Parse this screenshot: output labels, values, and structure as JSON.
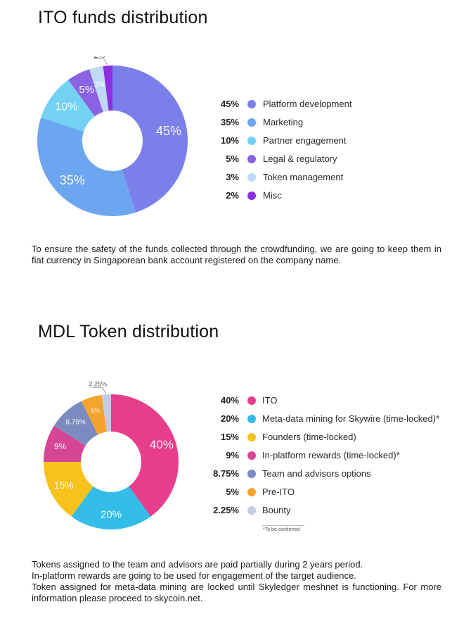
{
  "section1": {
    "title": "ITO funds distribution",
    "paragraph": "To ensure the safety of the funds collected through the crowdfunding, we are going to keep them in fiat currency in Singaporean bank account registered on the company name."
  },
  "section2": {
    "title": "MDL Token distribution",
    "footnote": "*To be confirmed",
    "paragraph_lines": [
      "Tokens assigned to the team and advisors are paid partially during 2 years period.",
      "In-platform rewards are going to be used for engagement of the target audience.",
      "Token assigned for meta-data mining are locked until Skyledger meshnet is functioning. For more information please proceed to skycoin.net."
    ]
  },
  "chart_data": [
    {
      "type": "pie",
      "title": "ITO funds distribution",
      "categories": [
        "Platform development",
        "Marketing",
        "Partner engagement",
        "Legal & regulatory",
        "Token management",
        "Misc"
      ],
      "values": [
        45,
        35,
        10,
        5,
        3,
        2
      ],
      "value_labels": [
        "45%",
        "35%",
        "10%",
        "5%",
        "3%",
        "2%"
      ],
      "slice_labels": [
        "45%",
        "35%",
        "10%",
        "5%",
        "3%",
        "2%"
      ],
      "colors": [
        "#7b7fea",
        "#6da6f0",
        "#73d1f4",
        "#8a63e3",
        "#bfd8f6",
        "#8e2fe0"
      ],
      "donut": true,
      "legend": "right"
    },
    {
      "type": "pie",
      "title": "MDL Token distribution",
      "categories": [
        "ITO",
        "Meta-data mining for Skywire (time-locked)*",
        "Founders (time-locked)",
        "In-platform rewards (time-locked)*",
        "Team and advisors options",
        "Pre-ITO",
        "Bounty"
      ],
      "values": [
        40,
        20,
        15,
        9,
        8.75,
        5,
        2.25
      ],
      "value_labels": [
        "40%",
        "20%",
        "15%",
        "9%",
        "8.75%",
        "5%",
        "2.25%"
      ],
      "slice_labels": [
        "40%",
        "20%",
        "15%",
        "9%",
        "8.75%",
        "5%",
        "2.25%"
      ],
      "colors": [
        "#e63d8c",
        "#32bde8",
        "#f7c21c",
        "#d64694",
        "#7b8bbf",
        "#f3a42c",
        "#c5cbe3"
      ],
      "donut": true,
      "legend": "right"
    }
  ]
}
